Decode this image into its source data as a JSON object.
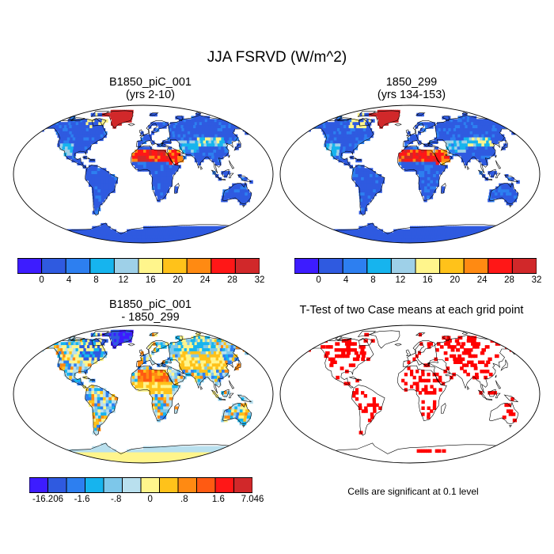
{
  "title": "JJA FSRVD (W/m^2)",
  "panels": [
    {
      "title1": "B1850_piC_001",
      "title2": "(yrs 2-10)"
    },
    {
      "title1": "1850_299",
      "title2": "(yrs 134-153)"
    },
    {
      "title1": "B1850_piC_001",
      "title2": "- 1850_299"
    },
    {
      "title1": "T-Test of two Case means at each grid point",
      "title2": ""
    }
  ],
  "colorbar_abs": {
    "colors": [
      "#3d1cff",
      "#2f5ae0",
      "#2d7ff0",
      "#16b4ee",
      "#9ed0e8",
      "#fff58c",
      "#ffc21a",
      "#ff8a12",
      "#ff1717",
      "#d1282a"
    ],
    "labels": [
      "0",
      "4",
      "8",
      "12",
      "16",
      "20",
      "24",
      "28",
      "32"
    ]
  },
  "colorbar_diff": {
    "colors": [
      "#3d1cff",
      "#2f5ae0",
      "#2d7ff0",
      "#16b4ee",
      "#7dc7ea",
      "#b9e0ee",
      "#fff58c",
      "#ffc21a",
      "#ff8a12",
      "#ff5a12",
      "#ff1717",
      "#d1282a"
    ],
    "labels": [
      "-16.206",
      "-1.6",
      "-.8",
      "0",
      ".8",
      "1.6",
      "7.046"
    ]
  },
  "significance_note": "Cells are significant at 0.1 level"
}
